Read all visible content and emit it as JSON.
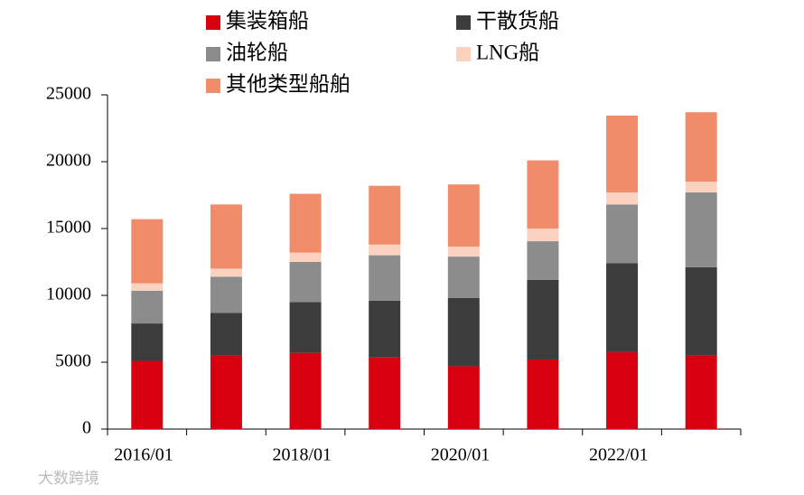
{
  "chart_data": {
    "type": "stacked_bar",
    "categories": [
      "2016/01",
      null,
      "2018/01",
      null,
      "2020/01",
      null,
      "2022/01",
      null
    ],
    "series": [
      {
        "name": "集装箱船",
        "color": "#d7000f",
        "values": [
          5100,
          5500,
          5700,
          5350,
          4700,
          5200,
          5750,
          5500
        ]
      },
      {
        "name": "干散货船",
        "color": "#3c3c3c",
        "values": [
          2800,
          3200,
          3800,
          4250,
          5100,
          5950,
          6650,
          6600
        ]
      },
      {
        "name": "油轮船",
        "color": "#8c8c8c",
        "values": [
          2450,
          2700,
          3000,
          3400,
          3100,
          2900,
          4400,
          5600
        ]
      },
      {
        "name": "LNG船",
        "color": "#fbd2c0",
        "values": [
          550,
          600,
          700,
          800,
          750,
          950,
          900,
          800
        ]
      },
      {
        "name": "其他类型船舶",
        "color": "#f08c6a",
        "values": [
          4800,
          4800,
          4400,
          4400,
          4650,
          5100,
          5750,
          5200
        ]
      }
    ],
    "ylim": [
      0,
      25000
    ],
    "yticks": [
      0,
      5000,
      10000,
      15000,
      20000,
      25000
    ]
  },
  "watermark": "大数跨境"
}
